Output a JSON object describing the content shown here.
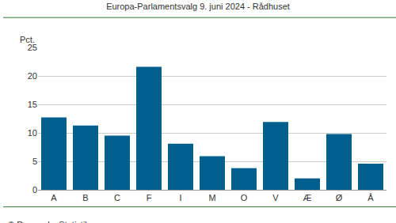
{
  "chart_data": {
    "type": "bar",
    "title": "Europa-Parlamentsvalg 9. juni 2024 - Rådhuset",
    "y_label": "Pct.",
    "annotations": [
      "© Danmarks Statistik"
    ],
    "categories": [
      "A",
      "B",
      "C",
      "F",
      "I",
      "M",
      "O",
      "V",
      "Æ",
      "Ø",
      "Å"
    ],
    "values": [
      12.7,
      11.3,
      9.5,
      21.6,
      8.1,
      5.9,
      3.8,
      11.9,
      2.0,
      9.8,
      4.6
    ],
    "color": "#005f8f",
    "ylim": [
      0,
      25
    ],
    "yticks": [
      0,
      5,
      10,
      15,
      20,
      25
    ],
    "grid": true
  }
}
